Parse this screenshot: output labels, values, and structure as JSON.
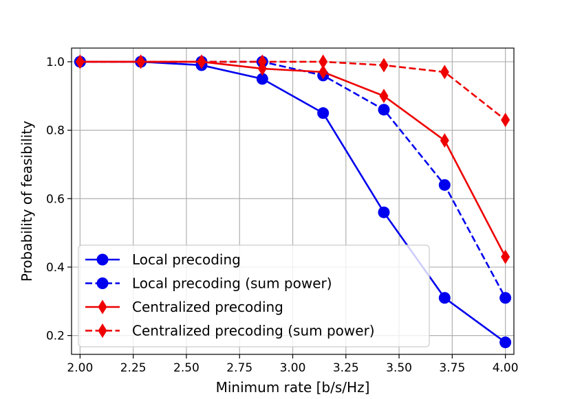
{
  "chart_data": {
    "type": "line",
    "title": "",
    "xlabel": "Minimum rate [b/s/Hz]",
    "ylabel": "Probability of feasibility",
    "xlim": [
      1.96,
      4.04
    ],
    "ylim": [
      0.145,
      1.04
    ],
    "xticks": [
      2.0,
      2.25,
      2.5,
      2.75,
      3.0,
      3.25,
      3.5,
      3.75,
      4.0
    ],
    "xtick_labels": [
      "2.00",
      "2.25",
      "2.50",
      "2.75",
      "3.00",
      "3.25",
      "3.50",
      "3.75",
      "4.00"
    ],
    "yticks": [
      0.2,
      0.4,
      0.6,
      0.8,
      1.0
    ],
    "ytick_labels": [
      "0.2",
      "0.4",
      "0.6",
      "0.8",
      "1.0"
    ],
    "grid": true,
    "legend_position": "lower-left",
    "x": [
      2.0,
      2.2857,
      2.5714,
      2.8571,
      3.1429,
      3.4286,
      3.7143,
      4.0
    ],
    "series": [
      {
        "name": "Local precoding",
        "color": "#0000ee",
        "linestyle": "solid",
        "marker": "circle",
        "values": [
          1.0,
          1.0,
          0.99,
          0.95,
          0.85,
          0.56,
          0.31,
          0.18
        ]
      },
      {
        "name": "Local precoding (sum power)",
        "color": "#0000ee",
        "linestyle": "dashed",
        "marker": "circle",
        "values": [
          1.0,
          1.0,
          1.0,
          1.0,
          0.96,
          0.86,
          0.64,
          0.31
        ]
      },
      {
        "name": "Centralized precoding",
        "color": "#ee0000",
        "linestyle": "solid",
        "marker": "diamond",
        "values": [
          1.0,
          1.0,
          1.0,
          0.98,
          0.97,
          0.9,
          0.77,
          0.43
        ]
      },
      {
        "name": "Centralized precoding (sum power)",
        "color": "#ee0000",
        "linestyle": "dashed",
        "marker": "diamond",
        "values": [
          1.0,
          1.0,
          1.0,
          1.0,
          1.0,
          0.99,
          0.97,
          0.83
        ]
      }
    ]
  }
}
